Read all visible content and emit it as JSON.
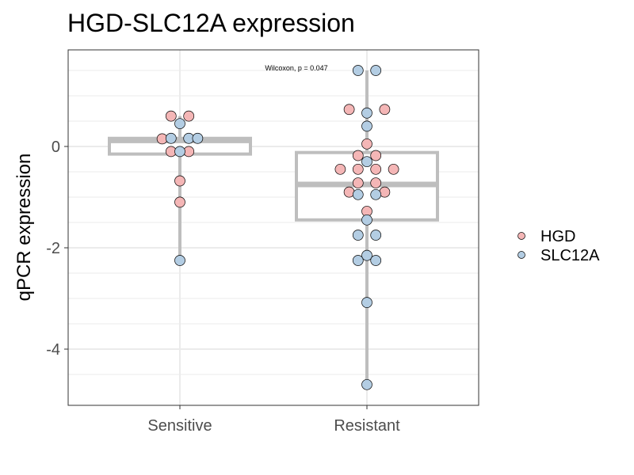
{
  "colors": {
    "HGD": "#f4b6b6",
    "SLC12A": "#b3cde3",
    "box": "#bebebe",
    "grid": "#ebebeb",
    "panel_border": "#333333",
    "point_outline": "#000000"
  },
  "chart_data": {
    "type": "box",
    "title": "HGD-SLC12A expression",
    "xlabel": "",
    "ylabel": "qPCR expression",
    "categories": [
      "Sensitive",
      "Resistant"
    ],
    "ylim": [
      -5.1,
      1.9
    ],
    "yticks": [
      0,
      -2,
      -4
    ],
    "ytick_labels": [
      "0",
      "-2",
      "-4"
    ],
    "grid": true,
    "legend_position": "right",
    "legend": [
      "HGD",
      "SLC12A"
    ],
    "annotation": "Wilcoxon, p = 0.047",
    "boxes": [
      {
        "category": "Sensitive",
        "q1": -0.15,
        "median": 0.12,
        "q3": 0.16,
        "whisker_low": -2.25,
        "whisker_high": 0.6
      },
      {
        "category": "Resistant",
        "q1": -1.45,
        "median": -0.75,
        "q3": -0.12,
        "whisker_low": -4.7,
        "whisker_high": 1.5
      }
    ],
    "series": [
      {
        "name": "HGD",
        "points": [
          {
            "category": "Sensitive",
            "y": 0.6,
            "offset": -0.8
          },
          {
            "category": "Sensitive",
            "y": 0.6,
            "offset": 0.8
          },
          {
            "category": "Sensitive",
            "y": 0.15,
            "offset": -1.6
          },
          {
            "category": "Sensitive",
            "y": -0.1,
            "offset": -0.8
          },
          {
            "category": "Sensitive",
            "y": -0.1,
            "offset": 0.8
          },
          {
            "category": "Sensitive",
            "y": -0.68,
            "offset": 0
          },
          {
            "category": "Sensitive",
            "y": -1.1,
            "offset": 0
          },
          {
            "category": "Resistant",
            "y": 0.73,
            "offset": -1.6
          },
          {
            "category": "Resistant",
            "y": 0.73,
            "offset": 1.6
          },
          {
            "category": "Resistant",
            "y": 0.05,
            "offset": 0
          },
          {
            "category": "Resistant",
            "y": -0.18,
            "offset": -0.8
          },
          {
            "category": "Resistant",
            "y": -0.18,
            "offset": 0.8
          },
          {
            "category": "Resistant",
            "y": -0.45,
            "offset": -2.4
          },
          {
            "category": "Resistant",
            "y": -0.45,
            "offset": -0.8
          },
          {
            "category": "Resistant",
            "y": -0.45,
            "offset": 0.8
          },
          {
            "category": "Resistant",
            "y": -0.45,
            "offset": 2.4
          },
          {
            "category": "Resistant",
            "y": -0.72,
            "offset": -0.8
          },
          {
            "category": "Resistant",
            "y": -0.72,
            "offset": 0.8
          },
          {
            "category": "Resistant",
            "y": -0.9,
            "offset": -1.6
          },
          {
            "category": "Resistant",
            "y": -0.9,
            "offset": 1.6
          },
          {
            "category": "Resistant",
            "y": -1.28,
            "offset": 0
          }
        ]
      },
      {
        "name": "SLC12A",
        "points": [
          {
            "category": "Sensitive",
            "y": 0.45,
            "offset": 0
          },
          {
            "category": "Sensitive",
            "y": 0.16,
            "offset": -0.8
          },
          {
            "category": "Sensitive",
            "y": 0.16,
            "offset": 0.8
          },
          {
            "category": "Sensitive",
            "y": 0.16,
            "offset": 1.6
          },
          {
            "category": "Sensitive",
            "y": -0.1,
            "offset": 0
          },
          {
            "category": "Sensitive",
            "y": -2.25,
            "offset": 0
          },
          {
            "category": "Resistant",
            "y": 1.5,
            "offset": -0.8
          },
          {
            "category": "Resistant",
            "y": 1.5,
            "offset": 0.8
          },
          {
            "category": "Resistant",
            "y": 0.66,
            "offset": 0
          },
          {
            "category": "Resistant",
            "y": 0.4,
            "offset": 0
          },
          {
            "category": "Resistant",
            "y": -0.3,
            "offset": 0
          },
          {
            "category": "Resistant",
            "y": -0.95,
            "offset": -0.8
          },
          {
            "category": "Resistant",
            "y": -0.95,
            "offset": 0.8
          },
          {
            "category": "Resistant",
            "y": -1.45,
            "offset": 0
          },
          {
            "category": "Resistant",
            "y": -1.75,
            "offset": -0.8
          },
          {
            "category": "Resistant",
            "y": -1.75,
            "offset": 0.8
          },
          {
            "category": "Resistant",
            "y": -2.15,
            "offset": 0
          },
          {
            "category": "Resistant",
            "y": -2.25,
            "offset": -0.8
          },
          {
            "category": "Resistant",
            "y": -2.25,
            "offset": 0.8
          },
          {
            "category": "Resistant",
            "y": -3.08,
            "offset": 0
          },
          {
            "category": "Resistant",
            "y": -4.7,
            "offset": 0
          }
        ]
      }
    ]
  }
}
